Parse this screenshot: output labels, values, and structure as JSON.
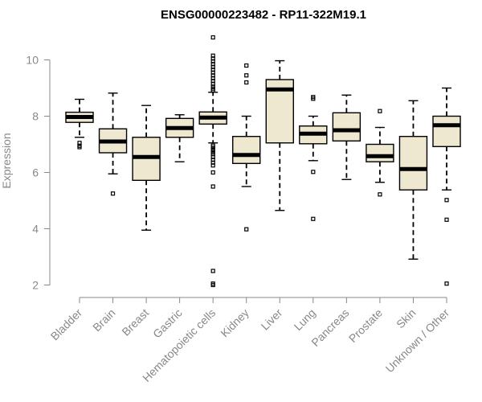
{
  "chart_data": {
    "type": "boxplot",
    "title": "ENSG00000223482 - RP11-322M19.1",
    "xlabel": "",
    "ylabel": "Expression",
    "ylim": [
      1.9,
      10.9
    ],
    "yticks": [
      2,
      4,
      6,
      8,
      10
    ],
    "box_fill": "#efe8d0",
    "categories": [
      "Bladder",
      "Brain",
      "Breast",
      "Gastric",
      "Hematopoietic cells",
      "Kidney",
      "Liver",
      "Lung",
      "Pancreas",
      "Prostate",
      "Skin",
      "Unknown / Other"
    ],
    "boxes": [
      {
        "min": 7.25,
        "q1": 7.78,
        "median": 7.97,
        "q3": 8.14,
        "max": 8.6,
        "outliers": [
          7.05,
          6.95,
          6.9
        ]
      },
      {
        "min": 5.95,
        "q1": 6.7,
        "median": 7.1,
        "q3": 7.55,
        "max": 8.82,
        "outliers": [
          5.25
        ]
      },
      {
        "min": 3.95,
        "q1": 5.72,
        "median": 6.55,
        "q3": 7.25,
        "max": 8.38,
        "outliers": []
      },
      {
        "min": 6.38,
        "q1": 7.25,
        "median": 7.58,
        "q3": 7.92,
        "max": 8.05,
        "outliers": []
      },
      {
        "min": 7.05,
        "q1": 7.72,
        "median": 7.95,
        "q3": 8.15,
        "max": 8.85,
        "outliers": [
          10.8,
          10.15,
          10.05,
          9.95,
          9.85,
          9.75,
          9.65,
          9.55,
          9.45,
          9.35,
          9.25,
          9.15,
          9.05,
          8.98,
          8.92,
          6.95,
          6.88,
          6.8,
          6.72,
          6.65,
          6.55,
          6.45,
          6.35,
          6.25,
          6.0,
          5.5,
          2.5,
          2.05,
          2.0
        ]
      },
      {
        "min": 5.5,
        "q1": 6.32,
        "median": 6.62,
        "q3": 7.28,
        "max": 8.0,
        "outliers": [
          9.8,
          9.45,
          9.2,
          3.98
        ]
      },
      {
        "min": 4.65,
        "q1": 7.05,
        "median": 8.95,
        "q3": 9.3,
        "max": 9.97,
        "outliers": []
      },
      {
        "min": 6.42,
        "q1": 7.02,
        "median": 7.38,
        "q3": 7.65,
        "max": 8.0,
        "outliers": [
          8.68,
          8.62,
          6.02,
          4.35
        ]
      },
      {
        "min": 5.75,
        "q1": 7.12,
        "median": 7.5,
        "q3": 8.12,
        "max": 8.75,
        "outliers": []
      },
      {
        "min": 5.65,
        "q1": 6.38,
        "median": 6.58,
        "q3": 7.0,
        "max": 7.6,
        "outliers": [
          8.18,
          5.22
        ]
      },
      {
        "min": 2.92,
        "q1": 5.38,
        "median": 6.12,
        "q3": 7.28,
        "max": 8.55,
        "outliers": []
      },
      {
        "min": 5.38,
        "q1": 6.92,
        "median": 7.68,
        "q3": 8.0,
        "max": 9.0,
        "outliers": [
          5.02,
          4.32,
          2.05
        ]
      }
    ]
  }
}
